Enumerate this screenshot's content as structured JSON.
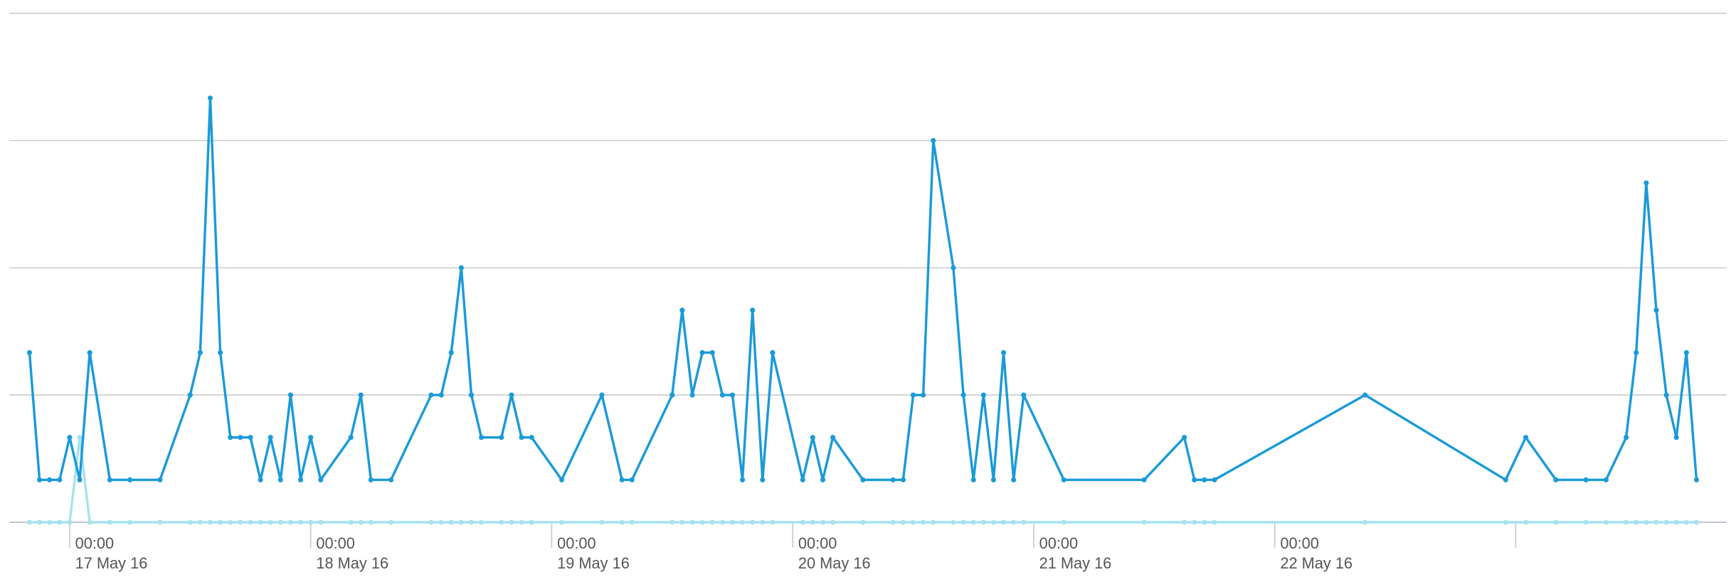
{
  "chart_data": {
    "type": "line",
    "x": [
      "2016-05-16T20:00",
      "2016-05-16T21:00",
      "2016-05-16T22:00",
      "2016-05-16T23:00",
      "2016-05-17T00:00",
      "2016-05-17T01:00",
      "2016-05-17T02:00",
      "2016-05-17T04:00",
      "2016-05-17T06:00",
      "2016-05-17T09:00",
      "2016-05-17T12:00",
      "2016-05-17T13:00",
      "2016-05-17T14:00",
      "2016-05-17T15:00",
      "2016-05-17T16:00",
      "2016-05-17T17:00",
      "2016-05-17T18:00",
      "2016-05-17T19:00",
      "2016-05-17T20:00",
      "2016-05-17T21:00",
      "2016-05-17T22:00",
      "2016-05-17T23:00",
      "2016-05-18T00:00",
      "2016-05-18T01:00",
      "2016-05-18T04:00",
      "2016-05-18T05:00",
      "2016-05-18T06:00",
      "2016-05-18T08:00",
      "2016-05-18T12:00",
      "2016-05-18T13:00",
      "2016-05-18T14:00",
      "2016-05-18T15:00",
      "2016-05-18T16:00",
      "2016-05-18T17:00",
      "2016-05-18T19:00",
      "2016-05-18T20:00",
      "2016-05-18T21:00",
      "2016-05-18T22:00",
      "2016-05-19T01:00",
      "2016-05-19T05:00",
      "2016-05-19T07:00",
      "2016-05-19T08:00",
      "2016-05-19T12:00",
      "2016-05-19T13:00",
      "2016-05-19T14:00",
      "2016-05-19T15:00",
      "2016-05-19T16:00",
      "2016-05-19T17:00",
      "2016-05-19T18:00",
      "2016-05-19T19:00",
      "2016-05-19T20:00",
      "2016-05-19T21:00",
      "2016-05-19T22:00",
      "2016-05-20T01:00",
      "2016-05-20T02:00",
      "2016-05-20T03:00",
      "2016-05-20T04:00",
      "2016-05-20T07:00",
      "2016-05-20T10:00",
      "2016-05-20T11:00",
      "2016-05-20T12:00",
      "2016-05-20T13:00",
      "2016-05-20T14:00",
      "2016-05-20T16:00",
      "2016-05-20T17:00",
      "2016-05-20T18:00",
      "2016-05-20T19:00",
      "2016-05-20T20:00",
      "2016-05-20T21:00",
      "2016-05-20T22:00",
      "2016-05-20T23:00",
      "2016-05-21T03:00",
      "2016-05-21T11:00",
      "2016-05-21T15:00",
      "2016-05-21T16:00",
      "2016-05-21T17:00",
      "2016-05-21T18:00",
      "2016-05-22T09:00",
      "2016-05-22T23:00",
      "2016-05-23T01:00",
      "2016-05-23T04:00",
      "2016-05-23T07:00",
      "2016-05-23T09:00",
      "2016-05-23T11:00",
      "2016-05-23T12:00",
      "2016-05-23T13:00",
      "2016-05-23T14:00",
      "2016-05-23T15:00",
      "2016-05-23T16:00",
      "2016-05-23T17:00",
      "2016-05-23T18:00"
    ],
    "series": [
      {
        "color": "#1a9ad9",
        "values": [
          4,
          1,
          1,
          1,
          2,
          1,
          4,
          1,
          1,
          1,
          3,
          4,
          10,
          4,
          2,
          2,
          2,
          1,
          2,
          1,
          3,
          1,
          2,
          1,
          2,
          3,
          1,
          1,
          3,
          3,
          4,
          6,
          3,
          2,
          2,
          3,
          2,
          2,
          1,
          3,
          1,
          1,
          3,
          5,
          3,
          4,
          4,
          3,
          3,
          1,
          5,
          1,
          4,
          1,
          2,
          1,
          2,
          1,
          1,
          1,
          3,
          3,
          9,
          6,
          3,
          1,
          3,
          1,
          4,
          1,
          3,
          1,
          1,
          2,
          1,
          1,
          1,
          3,
          1,
          2,
          1,
          1,
          1,
          2,
          4,
          8,
          5,
          3,
          2,
          4,
          1
        ]
      },
      {
        "color": "#a6e3ee",
        "values": [
          0,
          0,
          0,
          0,
          0,
          2,
          0,
          0,
          0,
          0,
          0,
          0,
          0,
          0,
          0,
          0,
          0,
          0,
          0,
          0,
          0,
          0,
          0,
          0,
          0,
          0,
          0,
          0,
          0,
          0,
          0,
          0,
          0,
          0,
          0,
          0,
          0,
          0,
          0,
          0,
          0,
          0,
          0,
          0,
          0,
          0,
          0,
          0,
          0,
          0,
          0,
          0,
          0,
          0,
          0,
          0,
          0,
          0,
          0,
          0,
          0,
          0,
          0,
          0,
          0,
          0,
          0,
          0,
          0,
          0,
          0,
          0,
          0,
          0,
          0,
          0,
          0,
          0,
          0,
          0,
          0,
          0,
          0,
          0,
          0,
          0,
          0,
          0,
          0,
          0,
          0
        ]
      }
    ],
    "xlim": [
      "2016-05-16T18:00",
      "2016-05-23T21:00"
    ],
    "xticks": [
      {
        "value": "2016-05-17T00:00",
        "label": [
          "00:00",
          "17 May 16"
        ]
      },
      {
        "value": "2016-05-18T00:00",
        "label": [
          "00:00",
          "18 May 16"
        ]
      },
      {
        "value": "2016-05-19T00:00",
        "label": [
          "00:00",
          "19 May 16"
        ]
      },
      {
        "value": "2016-05-20T00:00",
        "label": [
          "00:00",
          "20 May 16"
        ]
      },
      {
        "value": "2016-05-21T00:00",
        "label": [
          "00:00",
          "21 May 16"
        ]
      },
      {
        "value": "2016-05-22T00:00",
        "label": [
          "00:00",
          "22 May 16"
        ]
      },
      {
        "value": "2016-05-23T00:00",
        "label": null
      }
    ],
    "ylim": [
      0,
      12
    ],
    "yticks": [
      0,
      3,
      6,
      9,
      12
    ],
    "grid": true
  }
}
